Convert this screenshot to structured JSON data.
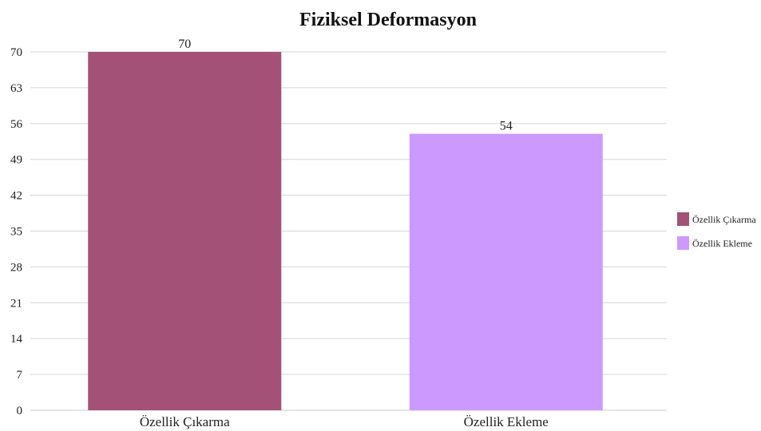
{
  "chart_data": {
    "type": "bar",
    "title": "Fiziksel Deformasyon",
    "xlabel": "",
    "ylabel": "",
    "categories": [
      "Özellik Çıkarma",
      "Özellik Ekleme"
    ],
    "values": [
      70,
      54
    ],
    "colors": [
      "#a45177",
      "#cc99ff"
    ],
    "ylim": [
      0,
      70
    ],
    "yticks": [
      0,
      7,
      14,
      21,
      28,
      35,
      42,
      49,
      56,
      63,
      70
    ],
    "grid": true,
    "legend": {
      "placement": "right",
      "entries": [
        "Özellik Çıkarma",
        "Özellik Ekleme"
      ]
    },
    "data_labels": [
      "70",
      "54"
    ]
  }
}
